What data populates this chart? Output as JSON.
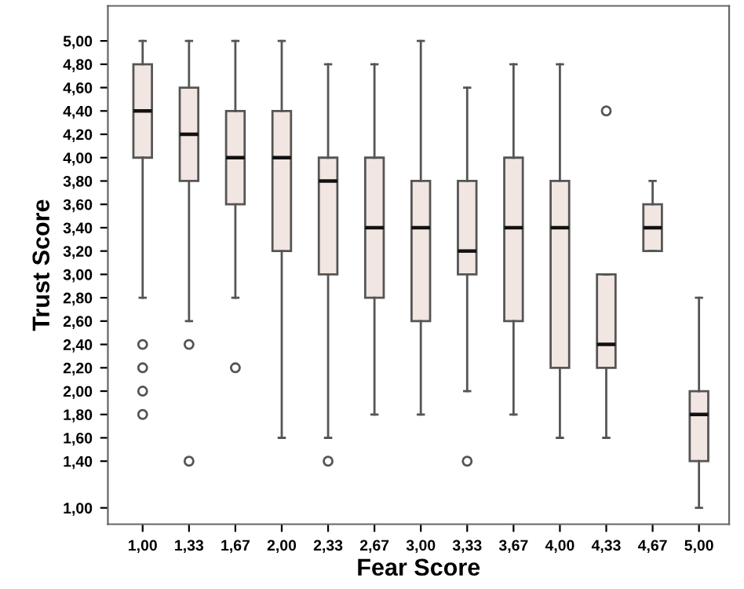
{
  "chart_data": {
    "type": "box",
    "xlabel": "Fear Score",
    "ylabel": "Trust Score",
    "categories": [
      "1,00",
      "1,33",
      "1,67",
      "2,00",
      "2,33",
      "2,67",
      "3,00",
      "3,33",
      "3,67",
      "4,00",
      "4,33",
      "4,67",
      "5,00"
    ],
    "color": "#f1e6e1",
    "boxes": [
      {
        "low": 2.8,
        "q1": 4.0,
        "median": 4.4,
        "q3": 4.8,
        "high": 5.0,
        "outliers": [
          2.4,
          2.2,
          2.0,
          1.8
        ]
      },
      {
        "low": 2.6,
        "q1": 3.8,
        "median": 4.2,
        "q3": 4.6,
        "high": 5.0,
        "outliers": [
          2.4,
          1.4
        ]
      },
      {
        "low": 2.8,
        "q1": 3.6,
        "median": 4.0,
        "q3": 4.4,
        "high": 5.0,
        "outliers": [
          2.2
        ]
      },
      {
        "low": 1.6,
        "q1": 3.2,
        "median": 4.0,
        "q3": 4.4,
        "high": 5.0
      },
      {
        "low": 1.6,
        "q1": 3.0,
        "median": 3.8,
        "q3": 4.0,
        "high": 4.8,
        "outliers": [
          1.4
        ]
      },
      {
        "low": 1.8,
        "q1": 2.8,
        "median": 3.4,
        "q3": 4.0,
        "high": 4.8
      },
      {
        "low": 1.8,
        "q1": 2.6,
        "median": 3.4,
        "q3": 3.8,
        "high": 5.0
      },
      {
        "low": 2.0,
        "q1": 3.0,
        "median": 3.2,
        "q3": 3.8,
        "high": 4.6,
        "outliers": [
          1.4
        ]
      },
      {
        "low": 1.8,
        "q1": 2.6,
        "median": 3.4,
        "q3": 4.0,
        "high": 4.8
      },
      {
        "low": 1.6,
        "q1": 2.2,
        "median": 3.4,
        "q3": 3.8,
        "high": 4.8
      },
      {
        "low": 1.6,
        "q1": 2.2,
        "median": 2.4,
        "q3": 3.0,
        "high": 3.0,
        "outliers": [
          4.4
        ]
      },
      {
        "low": 3.2,
        "q1": 3.2,
        "median": 3.4,
        "q3": 3.6,
        "high": 3.8
      },
      {
        "low": 1.0,
        "q1": 1.4,
        "median": 1.8,
        "q3": 2.0,
        "high": 2.8
      }
    ],
    "ylim": [
      0.86,
      5.3
    ],
    "yticks": [
      {
        "value": 1.0,
        "label": "1,00"
      },
      {
        "value": 1.4,
        "label": "1,40"
      },
      {
        "value": 1.6,
        "label": "1,60"
      },
      {
        "value": 1.8,
        "label": "1,80"
      },
      {
        "value": 2.0,
        "label": "2,00"
      },
      {
        "value": 2.2,
        "label": "2,20"
      },
      {
        "value": 2.4,
        "label": "2,40"
      },
      {
        "value": 2.6,
        "label": "2,60"
      },
      {
        "value": 2.8,
        "label": "2,80"
      },
      {
        "value": 3.0,
        "label": "3,00"
      },
      {
        "value": 3.2,
        "label": "3,20"
      },
      {
        "value": 3.4,
        "label": "3,40"
      },
      {
        "value": 3.6,
        "label": "3,60"
      },
      {
        "value": 3.8,
        "label": "3,80"
      },
      {
        "value": 4.0,
        "label": "4,00"
      },
      {
        "value": 4.2,
        "label": "4,20"
      },
      {
        "value": 4.4,
        "label": "4,40"
      },
      {
        "value": 4.6,
        "label": "4,60"
      },
      {
        "value": 4.8,
        "label": "4,80"
      },
      {
        "value": 5.0,
        "label": "5,00"
      }
    ],
    "grid": false,
    "legend": false
  }
}
